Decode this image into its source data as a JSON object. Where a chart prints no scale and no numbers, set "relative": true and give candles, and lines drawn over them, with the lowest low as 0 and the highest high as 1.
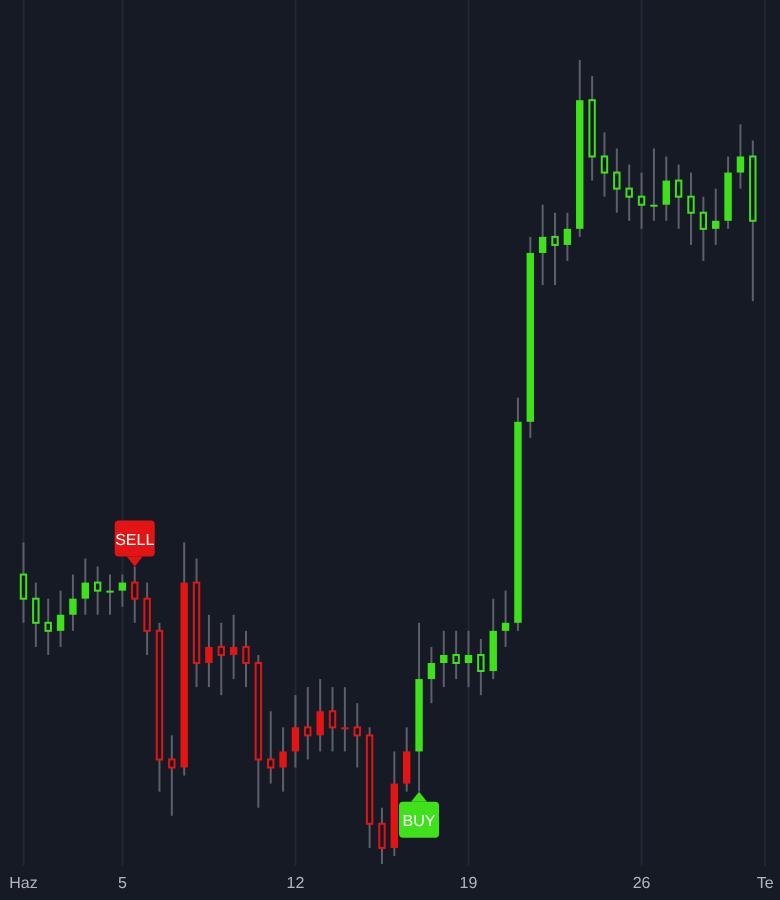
{
  "chart_data": {
    "type": "candlestick",
    "relative": true,
    "grid": "x",
    "xlim": [
      0.05,
      31.6
    ],
    "xticks": [
      {
        "value": 1,
        "label": "Haz"
      },
      5,
      12,
      19,
      26,
      {
        "value": 31,
        "label": "Te"
      }
    ],
    "x": [
      1,
      1.5,
      2,
      2.5,
      3,
      3.5,
      4,
      4.5,
      5,
      5.5,
      6,
      6.5,
      7,
      7.5,
      8,
      8.5,
      9,
      9.5,
      10,
      10.5,
      11,
      11.5,
      12,
      12.5,
      13,
      13.5,
      14,
      14.5,
      15,
      15.5,
      16,
      16.5,
      17,
      17.5,
      18,
      18.5,
      19,
      19.5,
      20,
      20.5,
      21,
      21.5,
      22,
      22.5,
      23,
      23.5,
      24,
      24.5,
      25,
      25.5,
      26,
      26.5,
      27,
      27.5,
      28,
      28.5,
      29,
      29.5,
      30,
      30.5
    ],
    "ohlc": [
      [
        0.36,
        0.4,
        0.3,
        0.33
      ],
      [
        0.33,
        0.35,
        0.27,
        0.3
      ],
      [
        0.3,
        0.33,
        0.26,
        0.29
      ],
      [
        0.29,
        0.34,
        0.27,
        0.31
      ],
      [
        0.31,
        0.36,
        0.29,
        0.33
      ],
      [
        0.33,
        0.38,
        0.31,
        0.35
      ],
      [
        0.35,
        0.37,
        0.31,
        0.34
      ],
      [
        0.34,
        0.36,
        0.31,
        0.34
      ],
      [
        0.34,
        0.36,
        0.32,
        0.35
      ],
      [
        0.35,
        0.37,
        0.3,
        0.33
      ],
      [
        0.33,
        0.35,
        0.26,
        0.29
      ],
      [
        0.29,
        0.3,
        0.09,
        0.13
      ],
      [
        0.13,
        0.16,
        0.06,
        0.12
      ],
      [
        0.12,
        0.4,
        0.11,
        0.35
      ],
      [
        0.35,
        0.38,
        0.22,
        0.25
      ],
      [
        0.25,
        0.31,
        0.22,
        0.27
      ],
      [
        0.27,
        0.3,
        0.21,
        0.26
      ],
      [
        0.26,
        0.31,
        0.23,
        0.27
      ],
      [
        0.27,
        0.29,
        0.22,
        0.25
      ],
      [
        0.25,
        0.26,
        0.07,
        0.13
      ],
      [
        0.13,
        0.19,
        0.1,
        0.12
      ],
      [
        0.12,
        0.17,
        0.09,
        0.14
      ],
      [
        0.14,
        0.21,
        0.12,
        0.17
      ],
      [
        0.17,
        0.22,
        0.13,
        0.16
      ],
      [
        0.16,
        0.23,
        0.14,
        0.19
      ],
      [
        0.19,
        0.22,
        0.14,
        0.17
      ],
      [
        0.17,
        0.22,
        0.14,
        0.17
      ],
      [
        0.17,
        0.2,
        0.12,
        0.16
      ],
      [
        0.16,
        0.17,
        0.02,
        0.05
      ],
      [
        0.05,
        0.07,
        0.0,
        0.02
      ],
      [
        0.02,
        0.14,
        0.01,
        0.1
      ],
      [
        0.1,
        0.17,
        0.09,
        0.14
      ],
      [
        0.14,
        0.3,
        0.09,
        0.23
      ],
      [
        0.23,
        0.27,
        0.2,
        0.25
      ],
      [
        0.25,
        0.29,
        0.22,
        0.26
      ],
      [
        0.26,
        0.29,
        0.23,
        0.25
      ],
      [
        0.25,
        0.29,
        0.22,
        0.26
      ],
      [
        0.26,
        0.28,
        0.21,
        0.24
      ],
      [
        0.24,
        0.33,
        0.23,
        0.29
      ],
      [
        0.29,
        0.34,
        0.27,
        0.3
      ],
      [
        0.3,
        0.58,
        0.29,
        0.55
      ],
      [
        0.55,
        0.78,
        0.53,
        0.76
      ],
      [
        0.76,
        0.82,
        0.72,
        0.78
      ],
      [
        0.78,
        0.81,
        0.72,
        0.77
      ],
      [
        0.77,
        0.81,
        0.75,
        0.79
      ],
      [
        0.79,
        1.0,
        0.78,
        0.95
      ],
      [
        0.95,
        0.98,
        0.85,
        0.88
      ],
      [
        0.88,
        0.91,
        0.83,
        0.86
      ],
      [
        0.86,
        0.89,
        0.81,
        0.84
      ],
      [
        0.84,
        0.87,
        0.8,
        0.83
      ],
      [
        0.83,
        0.86,
        0.79,
        0.82
      ],
      [
        0.82,
        0.89,
        0.8,
        0.82
      ],
      [
        0.82,
        0.88,
        0.8,
        0.85
      ],
      [
        0.85,
        0.87,
        0.79,
        0.83
      ],
      [
        0.83,
        0.86,
        0.77,
        0.81
      ],
      [
        0.81,
        0.83,
        0.75,
        0.79
      ],
      [
        0.79,
        0.84,
        0.77,
        0.8
      ],
      [
        0.8,
        0.88,
        0.79,
        0.86
      ],
      [
        0.86,
        0.92,
        0.84,
        0.88
      ],
      [
        0.88,
        0.9,
        0.7,
        0.8
      ]
    ],
    "colors": [
      "#3fe01c",
      "#3fe01c",
      "#3fe01c",
      "#3fe01c",
      "#3fe01c",
      "#3fe01c",
      "#3fe01c",
      "#3fe01c",
      "#3fe01c",
      "#e31414",
      "#e31414",
      "#e31414",
      "#e31414",
      "#e31414",
      "#e31414",
      "#e31414",
      "#e31414",
      "#e31414",
      "#e31414",
      "#e31414",
      "#e31414",
      "#e31414",
      "#e31414",
      "#e31414",
      "#e31414",
      "#e31414",
      "#e31414",
      "#e31414",
      "#e31414",
      "#e31414",
      "#e31414",
      "#e31414",
      "#3fe01c",
      "#3fe01c",
      "#3fe01c",
      "#3fe01c",
      "#3fe01c",
      "#3fe01c",
      "#3fe01c",
      "#3fe01c",
      "#3fe01c",
      "#3fe01c",
      "#3fe01c",
      "#3fe01c",
      "#3fe01c",
      "#3fe01c",
      "#3fe01c",
      "#3fe01c",
      "#3fe01c",
      "#3fe01c",
      "#3fe01c",
      "#3fe01c",
      "#3fe01c",
      "#3fe01c",
      "#3fe01c",
      "#3fe01c",
      "#3fe01c",
      "#3fe01c",
      "#3fe01c",
      "#3fe01c"
    ],
    "annotations": [
      {
        "text": "SELL",
        "x": 5.5,
        "y": 0.37
      },
      {
        "text": "BUY",
        "x": 17,
        "y": 0.09
      }
    ]
  }
}
